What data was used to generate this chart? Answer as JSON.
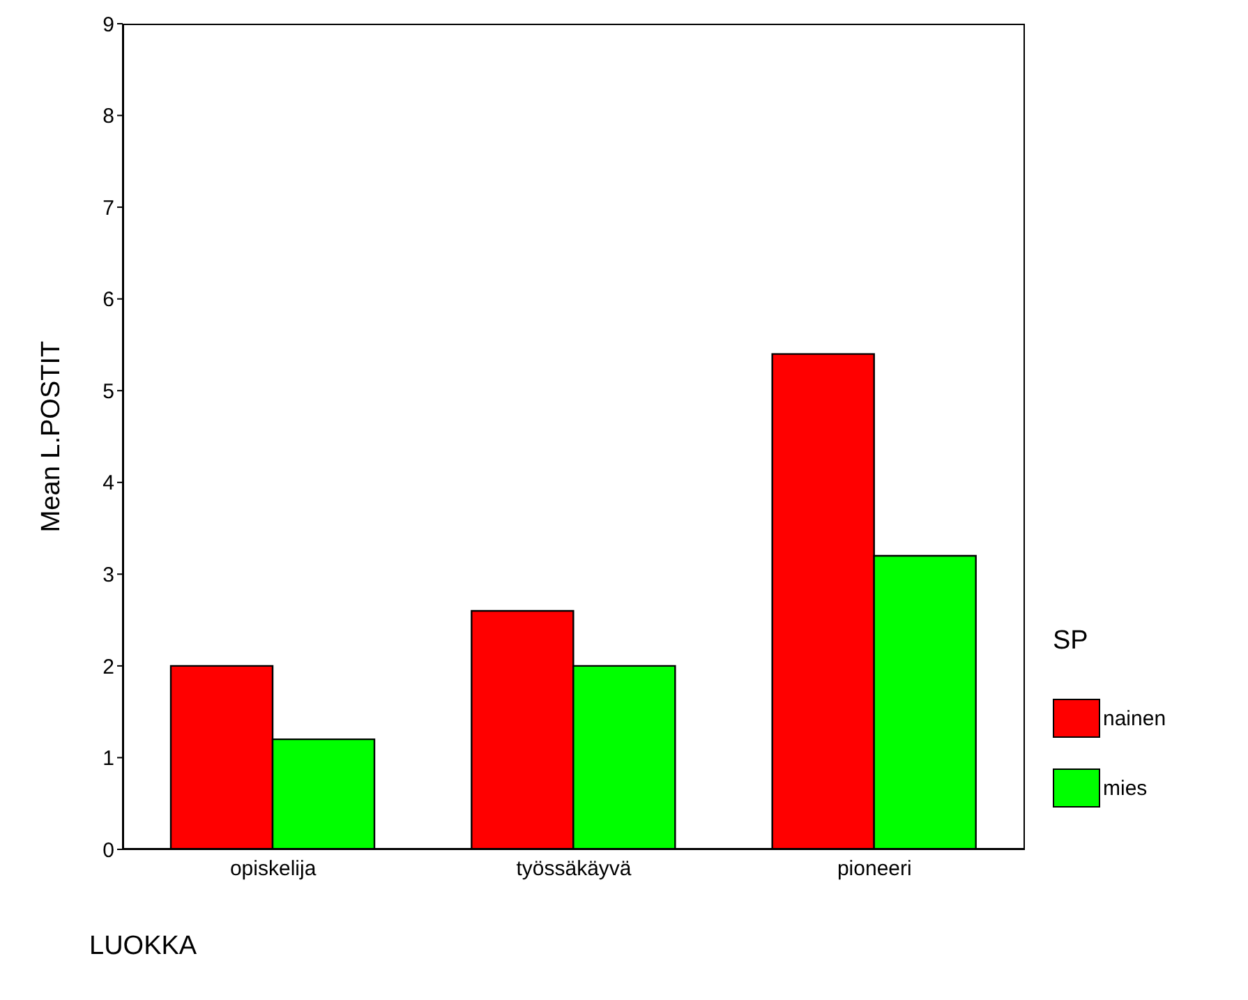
{
  "chart_data": {
    "type": "bar",
    "xlabel": "LUOKKA",
    "ylabel": "Mean L.POSTIT",
    "legend_title": "SP",
    "categories": [
      "opiskelija",
      "työssäkäyvä",
      "pioneeri"
    ],
    "series": [
      {
        "name": "nainen",
        "color": "#ff0000",
        "values": [
          2.0,
          2.6,
          5.4
        ]
      },
      {
        "name": "mies",
        "color": "#00ff00",
        "values": [
          1.2,
          2.0,
          3.2
        ]
      }
    ],
    "ylim": [
      0,
      9
    ],
    "yticks": [
      0,
      1,
      2,
      3,
      4,
      5,
      6,
      7,
      8,
      9
    ],
    "grid": false,
    "legend": "right"
  }
}
